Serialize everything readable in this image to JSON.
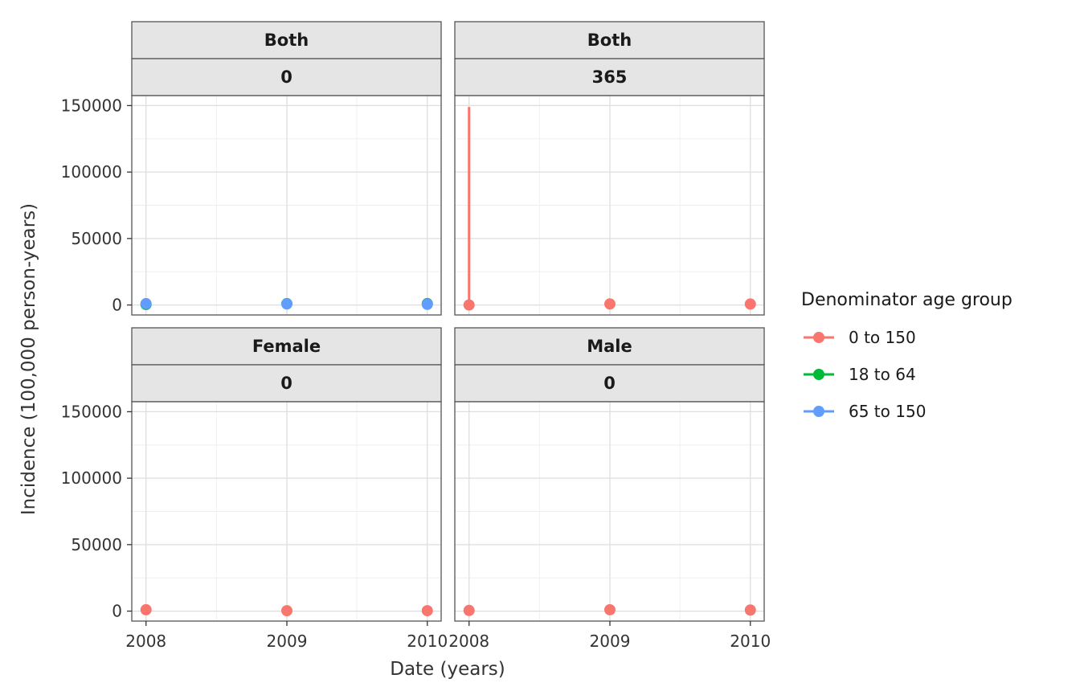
{
  "chart_data": {
    "type": "scatter",
    "xlabel": "Date (years)",
    "ylabel": "Incidence (100,000 person-years)",
    "x_tick_labels": [
      "2008",
      "2009",
      "2010"
    ],
    "y_tick_labels": [
      "0",
      "50000",
      "100000",
      "150000"
    ],
    "y_ticks": [
      0,
      50000,
      100000,
      150000
    ],
    "x_range": [
      "2007-11-25",
      "2010-02-06"
    ],
    "ylim": [
      -7500,
      157500
    ],
    "grid": true,
    "legend": {
      "title": "Denominator age group",
      "position": "right",
      "entries": [
        {
          "name": "0 to 150",
          "color": "#F8766D"
        },
        {
          "name": "18 to 64",
          "color": "#00BA38"
        },
        {
          "name": "65 to 150",
          "color": "#619CFF"
        }
      ]
    },
    "panels": [
      {
        "strip_top": "Both",
        "strip_bottom": "0",
        "series": [
          {
            "name": "18 to 64",
            "points": [
              {
                "x": "2008-01-01",
                "y": 400
              },
              {
                "x": "2009-01-01",
                "y": 1000
              },
              {
                "x": "2010-01-01",
                "y": 1000
              }
            ]
          },
          {
            "name": "65 to 150",
            "points": [
              {
                "x": "2008-01-01",
                "y": 1000
              },
              {
                "x": "2009-01-01",
                "y": 800
              },
              {
                "x": "2010-01-01",
                "y": 500
              }
            ]
          }
        ]
      },
      {
        "strip_top": "Both",
        "strip_bottom": "365",
        "series": [
          {
            "name": "0 to 150",
            "points": [
              {
                "x": "2008-01-01",
                "y": 0
              },
              {
                "x": "2009-01-01",
                "y": 800
              },
              {
                "x": "2010-01-01",
                "y": 700
              }
            ],
            "error_bars": [
              {
                "x": "2008-01-01",
                "low": 0,
                "high": 149000
              }
            ]
          }
        ]
      },
      {
        "strip_top": "Female",
        "strip_bottom": "0",
        "series": [
          {
            "name": "0 to 150",
            "points": [
              {
                "x": "2008-01-01",
                "y": 1000
              },
              {
                "x": "2009-01-01",
                "y": 300
              },
              {
                "x": "2010-01-01",
                "y": 300
              }
            ]
          }
        ]
      },
      {
        "strip_top": "Male",
        "strip_bottom": "0",
        "series": [
          {
            "name": "0 to 150",
            "points": [
              {
                "x": "2008-01-01",
                "y": 500
              },
              {
                "x": "2009-01-01",
                "y": 1000
              },
              {
                "x": "2010-01-01",
                "y": 800
              }
            ]
          }
        ]
      }
    ]
  }
}
